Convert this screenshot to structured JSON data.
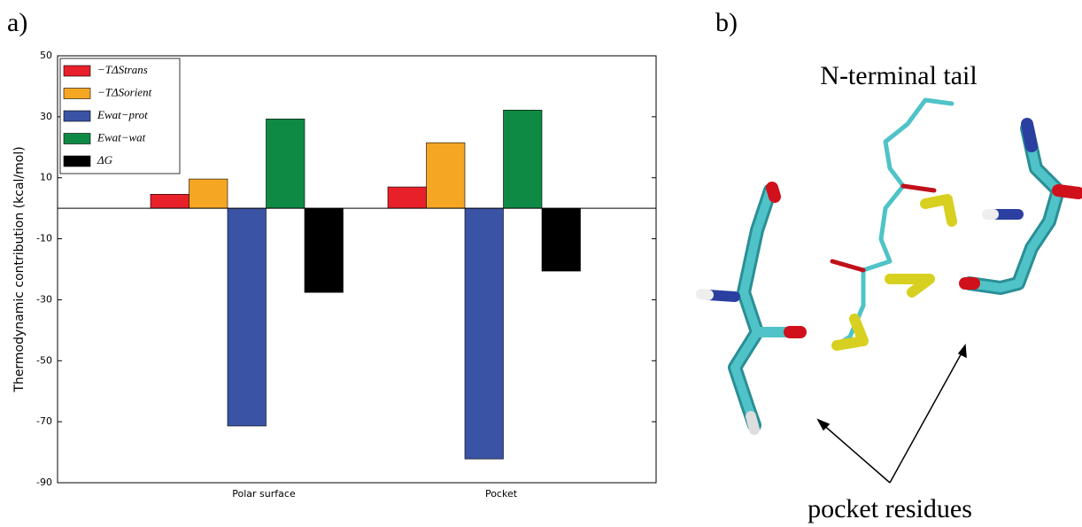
{
  "panel_labels": [
    "a)",
    "b)"
  ],
  "chart_data": {
    "type": "bar",
    "ylabel": "Thermodynamic contribution (kcal/mol)",
    "categories": [
      "Polar surface",
      "Pocket"
    ],
    "series": [
      {
        "name": "−TΔStrans",
        "color": "#e8202a",
        "values": [
          4.6,
          7
        ]
      },
      {
        "name": "−TΔSorient",
        "color": "#f5a623",
        "values": [
          9.6,
          21.5
        ]
      },
      {
        "name": "Ewat−prot",
        "color": "#3a53a4",
        "values": [
          -71.4,
          -82.2
        ]
      },
      {
        "name": "Ewat−wat",
        "color": "#0f8a45",
        "values": [
          29.3,
          32.2
        ]
      },
      {
        "name": "ΔG",
        "color": "#000000",
        "values": [
          -27.6,
          -20.6
        ]
      }
    ],
    "ylim": [
      -90,
      50
    ],
    "yticks": [
      -90,
      -70,
      -50,
      -30,
      -10,
      10,
      30,
      50
    ],
    "legend": "upper left",
    "grid": false
  },
  "molecule": {
    "tail_label": "N-terminal tail",
    "residues_label": "pocket residues"
  }
}
